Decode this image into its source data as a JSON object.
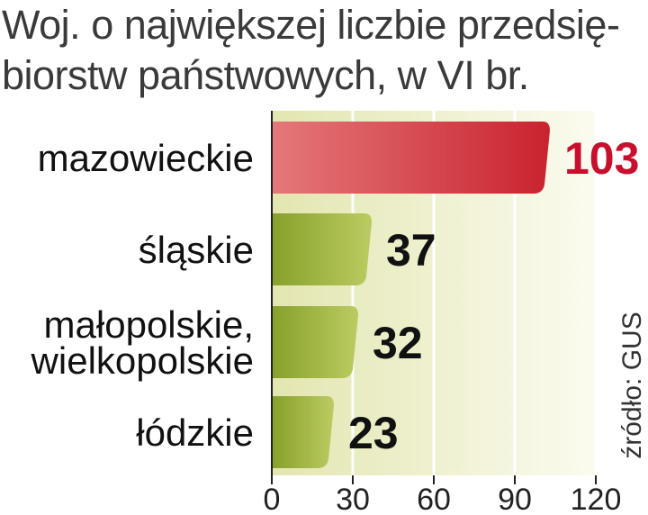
{
  "title": "Woj. o największej liczbie przedsię-biorstw państwowych, w VI br.",
  "title_lines": [
    "Woj. o największej liczbie przedsię-",
    "biorstw państwowych, w VI br."
  ],
  "source": "źródło: GUS",
  "colors": {
    "highlight_bar": "#d13a3f",
    "highlight_value": "#c8102e",
    "bar": "#9aad3a",
    "plot_bg": "#ecedc7",
    "axis": "#222222"
  },
  "chart_data": {
    "type": "bar",
    "orientation": "horizontal",
    "title": "Woj. o największej liczbie przedsię-biorstw państwowych, w VI br.",
    "categories": [
      {
        "lines": [
          "mazowieckie"
        ],
        "label": "mazowieckie"
      },
      {
        "lines": [
          "śląskie"
        ],
        "label": "śląskie"
      },
      {
        "lines": [
          "małopolskie,",
          "wielkopolskie"
        ],
        "label": "małopolskie, wielkopolskie"
      },
      {
        "lines": [
          "łódzkie"
        ],
        "label": "łódzkie"
      }
    ],
    "values": [
      103,
      37,
      32,
      23
    ],
    "highlight_index": 0,
    "xlim": [
      0,
      120
    ],
    "xticks": [
      0,
      30,
      60,
      90,
      120
    ],
    "grid": true,
    "source": "źródło: GUS"
  }
}
